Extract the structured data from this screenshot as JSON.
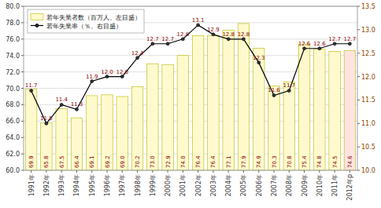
{
  "chart_data": {
    "type": "bar",
    "categories": [
      "1991年",
      "1992年",
      "1993年",
      "1994年",
      "1995年",
      "1996年",
      "1997年",
      "1998年",
      "1999年",
      "2000年",
      "2001年",
      "2002年",
      "2003年",
      "2004年",
      "2005年",
      "2006年",
      "2007年",
      "2008年",
      "2009年",
      "2010年",
      "2011年",
      "2012年p"
    ],
    "series": [
      {
        "name": "若年失業者数（百万人、左目盛）",
        "type": "bar",
        "color": "#FFFACD",
        "colors": [
          "#FFFACD",
          "#FFFACD",
          "#FFFACD",
          "#FFFACD",
          "#FFFACD",
          "#FFFACD",
          "#FFFACD",
          "#FFFACD",
          "#FFFACD",
          "#FFFACD",
          "#FFFACD",
          "#FFFACD",
          "#FFFACD",
          "#FFFACD",
          "#FFFACD",
          "#FFFACD",
          "#FFFACD",
          "#FFFACD",
          "#FFFACD",
          "#FFFACD",
          "#FFFACD",
          "#FFE4E1"
        ],
        "values": [
          69.9,
          65.8,
          67.5,
          66.4,
          69.1,
          69.2,
          69.0,
          70.2,
          73.0,
          72.9,
          74.0,
          76.4,
          76.4,
          77.1,
          77.9,
          74.9,
          70.3,
          70.8,
          75.4,
          74.8,
          74.5,
          74.6
        ],
        "value_labels": [
          "69.9",
          "65.8",
          "67.5",
          "66.4",
          "69.1",
          "69.2",
          "69.0",
          "70.2",
          "73.0",
          "72.9",
          "74.0",
          "76.4",
          "76.4",
          "77.1",
          "77.9",
          "74.9",
          "70.3",
          "70.8",
          "75.4",
          "74.8",
          "74.5",
          "74.6"
        ]
      },
      {
        "name": "若年失業率（％、右目盛）",
        "type": "line",
        "axis": "y2",
        "color": "#000000",
        "marker": "circle",
        "values": [
          11.7,
          11.0,
          11.4,
          11.3,
          11.9,
          12.0,
          12.0,
          12.4,
          12.7,
          12.7,
          12.8,
          13.1,
          12.9,
          12.8,
          12.8,
          12.3,
          11.6,
          11.7,
          12.6,
          12.6,
          12.7,
          12.7
        ],
        "value_labels": [
          "11.7",
          "11.0",
          "11.4",
          "11.3",
          "11.9",
          "12.0",
          "12.0",
          "12.4",
          "12.7",
          "12.7",
          "12.8",
          "13.1",
          "12.9",
          "12.8",
          "12.8",
          "12.3",
          "11.6",
          "11.7",
          "12.6",
          "12.6",
          "12.7",
          "12.7"
        ]
      }
    ],
    "ylim": [
      60.0,
      80.0
    ],
    "yticks": [
      {
        "value": 60,
        "label": "60.0"
      },
      {
        "value": 62,
        "label": "62.0"
      },
      {
        "value": 64,
        "label": "64.0"
      },
      {
        "value": 66,
        "label": "66.0"
      },
      {
        "value": 68,
        "label": "68.0"
      },
      {
        "value": 70,
        "label": "70.0"
      },
      {
        "value": 72,
        "label": "72.0"
      },
      {
        "value": 74,
        "label": "74.0"
      },
      {
        "value": 76,
        "label": "76.0"
      },
      {
        "value": 78,
        "label": "78.0"
      },
      {
        "value": 80,
        "label": "80.0"
      }
    ],
    "y2lim": [
      10.0,
      13.5
    ],
    "y2ticks": [
      {
        "value": 10,
        "label": "10.0"
      },
      10.5,
      {
        "value": 11,
        "label": "11.0"
      },
      11.5,
      {
        "value": 12,
        "label": "12.0"
      },
      12.5,
      {
        "value": 13,
        "label": "13.0"
      },
      13.5
    ],
    "grid": true,
    "legend": "upper-left",
    "data_labels": true
  }
}
